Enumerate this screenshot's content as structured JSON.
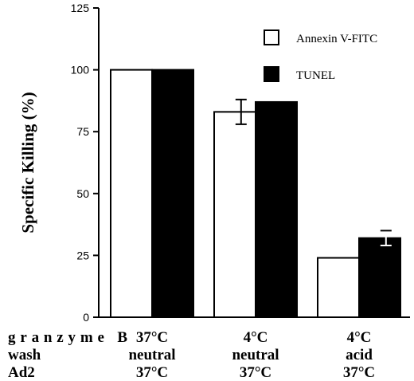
{
  "chart_data": {
    "type": "bar",
    "title": "",
    "ylabel": "Specific Killing (%)",
    "xlabel": "",
    "ylim": [
      0,
      125
    ],
    "yticks": [
      0,
      25,
      50,
      75,
      100,
      125
    ],
    "legend_position": "top-right",
    "row_labels": [
      "granzyme B",
      "wash",
      "Ad2"
    ],
    "categories": [
      [
        "37°C",
        "neutral",
        "37°C"
      ],
      [
        "4°C",
        "neutral",
        "37°C"
      ],
      [
        "4°C",
        "acid",
        "37°C"
      ]
    ],
    "series": [
      {
        "name": "Annexin V-FITC",
        "color": "#ffffff",
        "values": [
          100,
          83,
          24
        ],
        "error_plus_minus": [
          null,
          5,
          null
        ]
      },
      {
        "name": "TUNEL",
        "color": "#000000",
        "values": [
          100,
          87,
          32
        ],
        "error_plus_minus": [
          null,
          null,
          3
        ]
      }
    ]
  }
}
